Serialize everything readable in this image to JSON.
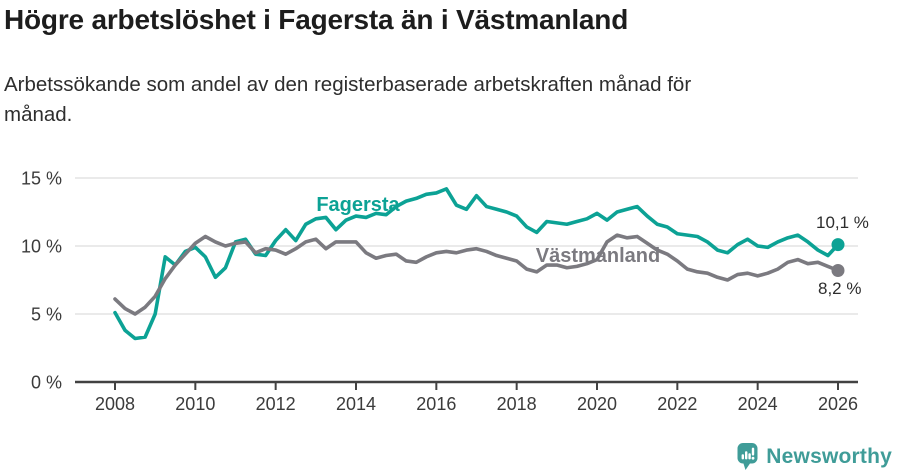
{
  "header": {
    "title": "Högre arbetslöshet i Fagersta än i Västmanland",
    "subtitle_line1": "Arbetssökande som andel av den registerbaserade arbetskraften månad för",
    "subtitle_line2": "månad."
  },
  "chart_data": {
    "type": "line",
    "title": "Högre arbetslöshet i Fagersta än i Västmanland",
    "subtitle": "Arbetssökande som andel av den registerbaserade arbetskraften månad för månad.",
    "xlabel": "",
    "ylabel": "",
    "grid": "horizontal",
    "legend_position": "inline-labels",
    "xlim": [
      2007,
      2026.5
    ],
    "ylim": [
      0,
      15.7
    ],
    "yticks": [
      0,
      5,
      10,
      15
    ],
    "ytick_suffix": " %",
    "xticks": [
      2008,
      2010,
      2012,
      2014,
      2016,
      2018,
      2020,
      2022,
      2024,
      2026
    ],
    "x_unit": "decimal-year (monthly series sampled quarterly)",
    "x": [
      2008,
      2008.25,
      2008.5,
      2008.75,
      2009,
      2009.25,
      2009.5,
      2009.75,
      2010,
      2010.25,
      2010.5,
      2010.75,
      2011,
      2011.25,
      2011.5,
      2011.75,
      2012,
      2012.25,
      2012.5,
      2012.75,
      2013,
      2013.25,
      2013.5,
      2013.75,
      2014,
      2014.25,
      2014.5,
      2014.75,
      2015,
      2015.25,
      2015.5,
      2015.75,
      2016,
      2016.25,
      2016.5,
      2016.75,
      2017,
      2017.25,
      2017.5,
      2017.75,
      2018,
      2018.25,
      2018.5,
      2018.75,
      2019,
      2019.25,
      2019.5,
      2019.75,
      2020,
      2020.25,
      2020.5,
      2020.75,
      2021,
      2021.25,
      2021.5,
      2021.75,
      2022,
      2022.25,
      2022.5,
      2022.75,
      2023,
      2023.25,
      2023.5,
      2023.75,
      2024,
      2024.25,
      2024.5,
      2024.75,
      2025,
      2025.25,
      2025.5,
      2025.75,
      2026
    ],
    "series": [
      {
        "name": "Fagersta",
        "color": "#0ca295",
        "end_label": "10,1 %",
        "end_value": 10.1,
        "values": [
          5.1,
          3.8,
          3.2,
          3.3,
          5.0,
          9.2,
          8.6,
          9.6,
          9.9,
          9.2,
          7.7,
          8.4,
          10.3,
          10.5,
          9.4,
          9.3,
          10.4,
          11.2,
          10.4,
          11.6,
          12.0,
          12.1,
          11.2,
          11.9,
          12.2,
          12.1,
          12.4,
          12.3,
          12.9,
          13.3,
          13.5,
          13.8,
          13.9,
          14.2,
          13.0,
          12.7,
          13.7,
          12.9,
          12.7,
          12.5,
          12.2,
          11.4,
          11.0,
          11.8,
          11.7,
          11.6,
          11.8,
          12.0,
          12.4,
          11.9,
          12.5,
          12.7,
          12.9,
          12.2,
          11.6,
          11.4,
          10.9,
          10.8,
          10.7,
          10.3,
          9.7,
          9.5,
          10.1,
          10.5,
          10.0,
          9.9,
          10.3,
          10.6,
          10.8,
          10.3,
          9.7,
          9.3,
          10.1
        ]
      },
      {
        "name": "Västmanland",
        "color": "#7b7a80",
        "end_label": "8,2 %",
        "end_value": 8.2,
        "values": [
          6.1,
          5.4,
          5.0,
          5.5,
          6.3,
          7.6,
          8.6,
          9.4,
          10.2,
          10.7,
          10.3,
          10.0,
          10.2,
          10.3,
          9.5,
          9.8,
          9.7,
          9.4,
          9.8,
          10.3,
          10.5,
          9.8,
          10.3,
          10.3,
          10.3,
          9.5,
          9.1,
          9.3,
          9.4,
          8.9,
          8.8,
          9.2,
          9.5,
          9.6,
          9.5,
          9.7,
          9.8,
          9.6,
          9.3,
          9.1,
          8.9,
          8.3,
          8.1,
          8.6,
          8.6,
          8.4,
          8.5,
          8.7,
          9.0,
          10.3,
          10.8,
          10.6,
          10.7,
          10.2,
          9.7,
          9.4,
          8.9,
          8.3,
          8.1,
          8.0,
          7.7,
          7.5,
          7.9,
          8.0,
          7.8,
          8.0,
          8.3,
          8.8,
          9.0,
          8.7,
          8.8,
          8.5,
          8.2
        ]
      }
    ],
    "colors": {
      "grid": "#e3e3e3",
      "axis": "#424242",
      "axis_text": "#3b3b3b",
      "end_label_text": "#2d2d2d"
    }
  },
  "footer": {
    "brand": "Newsworthy",
    "brand_color": "#3f9c98",
    "logo_icon": "newsworthy-chart-bubble-icon"
  }
}
